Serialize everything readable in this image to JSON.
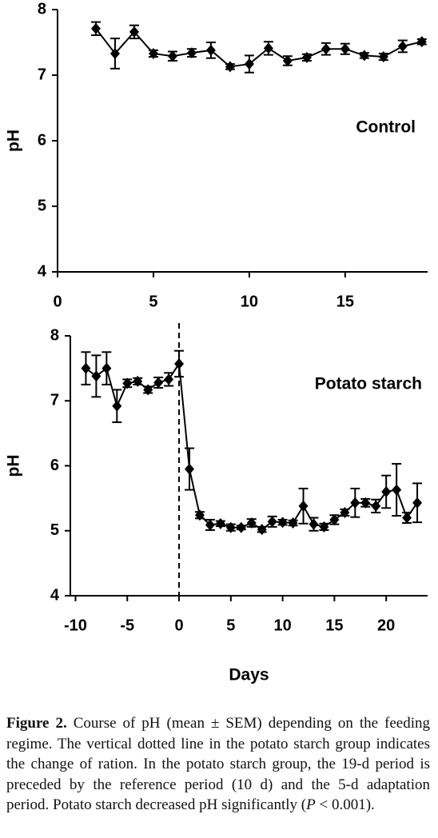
{
  "chart_data": [
    {
      "type": "line",
      "annotation": "Control",
      "ylabel": "pH",
      "x": [
        2,
        3,
        4,
        5,
        6,
        7,
        8,
        9,
        10,
        11,
        12,
        13,
        14,
        15,
        16,
        17,
        18,
        19
      ],
      "series": [
        {
          "name": "pH",
          "color": "#000000",
          "values": [
            7.71,
            7.33,
            7.66,
            7.33,
            7.29,
            7.34,
            7.38,
            7.13,
            7.17,
            7.41,
            7.22,
            7.27,
            7.4,
            7.4,
            7.3,
            7.28,
            7.44,
            7.51
          ],
          "errors": [
            0.1,
            0.23,
            0.1,
            0.05,
            0.07,
            0.06,
            0.12,
            0.04,
            0.13,
            0.1,
            0.07,
            0.05,
            0.09,
            0.08,
            0.04,
            0.05,
            0.09,
            0.04
          ]
        }
      ],
      "xlim": [
        0,
        19.3
      ],
      "ylim": [
        4,
        8
      ],
      "xticks": [
        0,
        5,
        10,
        15
      ],
      "yticks": [
        4,
        5,
        6,
        7,
        8
      ]
    },
    {
      "type": "line",
      "annotation": "Potato starch",
      "ylabel": "pH",
      "xlabel": "Days",
      "vline": 0,
      "x": [
        -9,
        -8,
        -7,
        -6,
        -5,
        -4,
        -3,
        -2,
        -1,
        0,
        1,
        2,
        3,
        4,
        5,
        6,
        7,
        8,
        9,
        10,
        11,
        12,
        13,
        14,
        15,
        16,
        17,
        18,
        19,
        20,
        21,
        22,
        23
      ],
      "series": [
        {
          "name": "pH",
          "color": "#000000",
          "values": [
            7.5,
            7.38,
            7.5,
            6.92,
            7.27,
            7.3,
            7.17,
            7.28,
            7.33,
            7.57,
            5.95,
            5.24,
            5.09,
            5.11,
            5.05,
            5.05,
            5.12,
            5.02,
            5.14,
            5.13,
            5.12,
            5.38,
            5.1,
            5.06,
            5.17,
            5.28,
            5.43,
            5.43,
            5.38,
            5.6,
            5.63,
            5.2,
            5.43
          ],
          "errors": [
            0.25,
            0.32,
            0.25,
            0.25,
            0.06,
            0.05,
            0.05,
            0.08,
            0.1,
            0.2,
            0.32,
            0.05,
            0.08,
            0.04,
            0.05,
            0.03,
            0.06,
            0.04,
            0.08,
            0.04,
            0.04,
            0.27,
            0.1,
            0.05,
            0.07,
            0.05,
            0.22,
            0.06,
            0.1,
            0.25,
            0.4,
            0.08,
            0.3
          ]
        }
      ],
      "xlim": [
        -10.5,
        24
      ],
      "ylim": [
        4,
        8
      ],
      "xticks": [
        -10,
        -5,
        0,
        5,
        10,
        15,
        20
      ],
      "yticks": [
        4,
        5,
        6,
        7,
        8
      ]
    }
  ],
  "caption": {
    "label": "Figure 2.",
    "parts": [
      " Course of pH (mean ± SEM) depending on the feeding regime. The vertical dotted line in the potato starch group indicates the change of ration. In the potato starch group, the 19-d period is preceded by the reference period (10 d) and the 5-d adaptation period. Potato starch decreased pH significantly (",
      "P",
      " < 0.001)."
    ]
  }
}
